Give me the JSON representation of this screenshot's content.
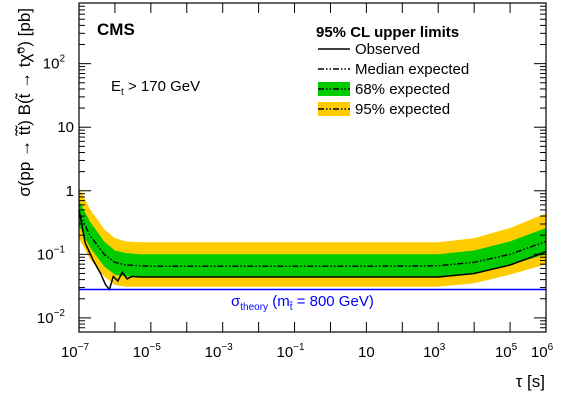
{
  "chart_data": {
    "type": "line",
    "experiment": "CMS",
    "annotation": "E",
    "annotation_sub": "t",
    "annotation_rest": " > 170 GeV",
    "xlabel": "τ [s]",
    "ylabel": "σ(pp → t̃t̃) B(t̃ → tχ̃⁰) [pb]",
    "x_scale": "log",
    "y_scale": "log",
    "xlim": [
      1e-07,
      1000000.0
    ],
    "ylim": [
      0.006,
      900
    ],
    "x_tick_labels": [
      {
        "x": 1e-07,
        "base": "10",
        "exp": "−7"
      },
      {
        "x": 1e-05,
        "base": "10",
        "exp": "−5"
      },
      {
        "x": 0.001,
        "base": "10",
        "exp": "−3"
      },
      {
        "x": 0.1,
        "base": "10",
        "exp": "−1"
      },
      {
        "x": 10,
        "base": "10",
        "exp": ""
      },
      {
        "x": 1000.0,
        "base": "10",
        "exp": "3"
      },
      {
        "x": 100000.0,
        "base": "10",
        "exp": "5"
      },
      {
        "x": 1000000.0,
        "base": "10",
        "exp": "6"
      }
    ],
    "y_tick_labels": [
      {
        "y": 0.01,
        "base": "10",
        "exp": "−2"
      },
      {
        "y": 0.1,
        "base": "10",
        "exp": "−1"
      },
      {
        "y": 1,
        "base": "1",
        "exp": ""
      },
      {
        "y": 10,
        "base": "10",
        "exp": ""
      },
      {
        "y": 100,
        "base": "10",
        "exp": "2"
      }
    ],
    "legend": {
      "title": "95% CL upper limits",
      "position": "top-right",
      "entries": [
        "Observed",
        "Median expected",
        "68% expected",
        "95% expected"
      ]
    },
    "theory": {
      "label": "σ",
      "label_sub": "theory",
      "label_rest": " (m",
      "mass_sub": "t̃",
      "label_end": " = 800 GeV)",
      "value": 0.028,
      "color": "#0000ff"
    },
    "colors": {
      "band68": "#00cc00",
      "band95": "#ffcc00",
      "observed": "#000000",
      "expected": "#000000"
    },
    "series": {
      "x": [
        1e-07,
        2e-07,
        5e-07,
        1e-06,
        2e-06,
        5e-06,
        1e-05,
        0.0001,
        0.001,
        0.1,
        10,
        1000.0,
        10000.0,
        100000.0,
        1000000.0
      ],
      "expected": [
        0.45,
        0.2,
        0.1,
        0.075,
        0.068,
        0.066,
        0.065,
        0.065,
        0.065,
        0.065,
        0.065,
        0.066,
        0.075,
        0.1,
        0.16
      ],
      "band68_lo": [
        0.28,
        0.13,
        0.065,
        0.048,
        0.045,
        0.044,
        0.044,
        0.044,
        0.044,
        0.044,
        0.044,
        0.044,
        0.05,
        0.068,
        0.1
      ],
      "band68_hi": [
        0.7,
        0.33,
        0.16,
        0.115,
        0.105,
        0.1,
        0.1,
        0.1,
        0.1,
        0.1,
        0.1,
        0.1,
        0.115,
        0.16,
        0.26
      ],
      "band95_lo": [
        0.18,
        0.085,
        0.045,
        0.033,
        0.031,
        0.031,
        0.031,
        0.031,
        0.031,
        0.031,
        0.031,
        0.031,
        0.035,
        0.048,
        0.07
      ],
      "band95_hi": [
        1.1,
        0.52,
        0.25,
        0.18,
        0.16,
        0.155,
        0.155,
        0.155,
        0.155,
        0.155,
        0.155,
        0.155,
        0.18,
        0.26,
        0.44
      ],
      "observed_x": [
        1e-07,
        1.5e-07,
        2.5e-07,
        4e-07,
        5.5e-07,
        7e-07,
        9e-07,
        1.2e-06,
        1.6e-06,
        2.2e-06,
        3e-06,
        5e-06,
        1e-05,
        0.001,
        10,
        1000.0,
        10000.0,
        100000.0,
        1000000.0
      ],
      "observed": [
        0.5,
        0.15,
        0.08,
        0.05,
        0.033,
        0.028,
        0.045,
        0.038,
        0.052,
        0.041,
        0.045,
        0.044,
        0.044,
        0.044,
        0.044,
        0.044,
        0.05,
        0.068,
        0.11
      ]
    }
  }
}
